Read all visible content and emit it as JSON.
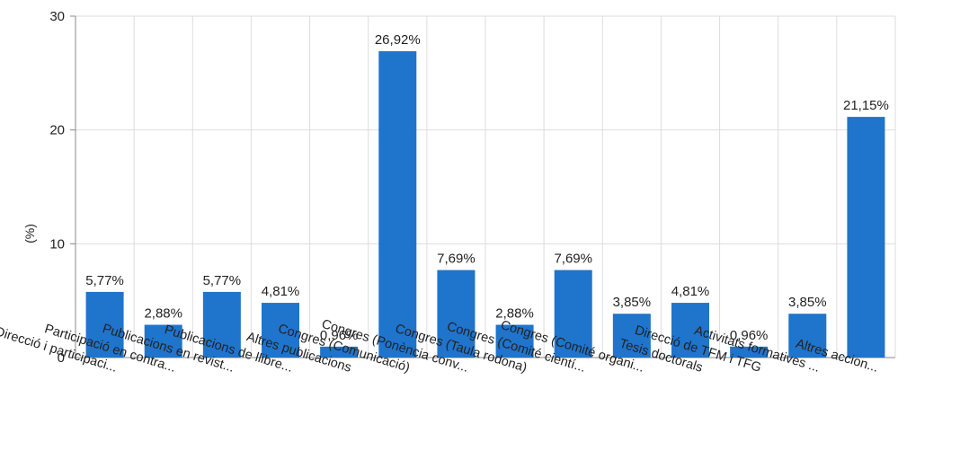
{
  "colors": {
    "bar": "#1f74cc",
    "grid": "#dddddd",
    "axis": "#888888",
    "text": "#222222"
  },
  "chart_data": {
    "type": "bar",
    "title": "",
    "xlabel": "",
    "ylabel": "(%)",
    "ylim": [
      0,
      30
    ],
    "yticks": [
      0,
      10,
      20,
      30
    ],
    "grid": true,
    "categories": [
      "Direcció i participaci...",
      "Participació en contra...",
      "Publicacions en revist...",
      "Publicacions de llibre...",
      "Altres publicacions",
      "Congres (Comunicació)",
      "Congres (Ponència conv...",
      "Congres (Taula rodona)",
      "Congres (Comité cientí...",
      "Congres (Comité organi...",
      "Tesis doctorals",
      "Direcció de TFM i TFG",
      "Activitats formatives ...",
      "Altres accion..."
    ],
    "values": [
      5.77,
      2.88,
      5.77,
      4.81,
      0.96,
      26.92,
      7.69,
      2.88,
      7.69,
      3.85,
      4.81,
      0.96,
      3.85,
      21.15
    ],
    "data_labels": [
      "5,77%",
      "2,88%",
      "5,77%",
      "4,81%",
      "0,96%",
      "26,92%",
      "7,69%",
      "2,88%",
      "7,69%",
      "3,85%",
      "4,81%",
      "0,96%",
      "3,85%",
      "21,15%"
    ]
  }
}
